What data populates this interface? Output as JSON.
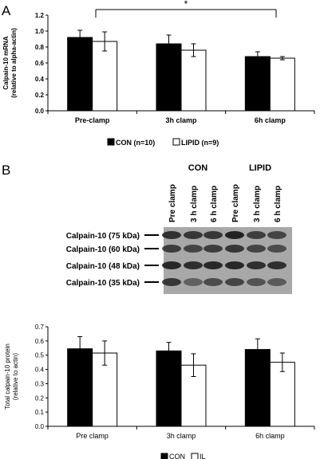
{
  "panel_a": {
    "letter": "A",
    "significance": "*",
    "legend": [
      "CON (n=10)",
      "LIPID (n=9)"
    ]
  },
  "panel_b": {
    "letter": "B",
    "group_labels": [
      "CON",
      "LIPID"
    ],
    "lane_labels": [
      "Pre clamp",
      "3 h clamp",
      "6 h clamp",
      "Pre clamp",
      "3 h clamp",
      "6 h clamp"
    ],
    "band_labels": [
      "Calpain-10 (75 kDa)",
      "Calpain-10 (60 kDa)",
      "Calpain-10 (48 kDa)",
      "Calpain-10 (35 kDa)"
    ],
    "legend": [
      "CON",
      "IL"
    ]
  },
  "colors": {
    "con": "#000000",
    "lipid": "#ffffff",
    "blot_bg": "#a8a8a8",
    "band": "#1a1a1a"
  },
  "chart_data": [
    {
      "type": "bar",
      "title": "",
      "xlabel": "",
      "ylabel": "Calpain-10 mRNA (relative to alpha-actin)",
      "ylabel_lines": [
        "Calpain-10 mRNA",
        "(relative to alpha-actin)"
      ],
      "categories": [
        "Pre-clamp",
        "3h clamp",
        "6h clamp"
      ],
      "ylim": [
        0,
        1.2
      ],
      "yticks": [
        "0.0",
        "0.2",
        "0.4",
        "0.6",
        "0.8",
        "1.0",
        "1.2"
      ],
      "series": [
        {
          "name": "CON (n=10)",
          "values": [
            0.92,
            0.84,
            0.68
          ],
          "errors": [
            0.09,
            0.11,
            0.06
          ]
        },
        {
          "name": "LIPID (n=9)",
          "values": [
            0.87,
            0.76,
            0.66
          ],
          "errors": [
            0.12,
            0.08,
            0.02
          ]
        }
      ],
      "grid": false,
      "legend_position": "bottom"
    },
    {
      "type": "bar",
      "title": "",
      "xlabel": "",
      "ylabel": "Total calpain-10 protein (relative to actin)",
      "ylabel_lines": [
        "Total calpain-10 protein",
        "(relative to actin)"
      ],
      "categories": [
        "Pre clamp",
        "3h clamp",
        "6h clamp"
      ],
      "ylim": [
        0,
        0.7
      ],
      "yticks": [
        "0.0",
        "0.1",
        "0.2",
        "0.3",
        "0.4",
        "0.5",
        "0.6",
        "0.7"
      ],
      "series": [
        {
          "name": "CON",
          "values": [
            0.545,
            0.53,
            0.54
          ],
          "errors": [
            0.085,
            0.06,
            0.075
          ]
        },
        {
          "name": "IL",
          "values": [
            0.515,
            0.43,
            0.45
          ],
          "errors": [
            0.085,
            0.08,
            0.065
          ]
        }
      ],
      "grid": false,
      "legend_position": "bottom"
    }
  ]
}
